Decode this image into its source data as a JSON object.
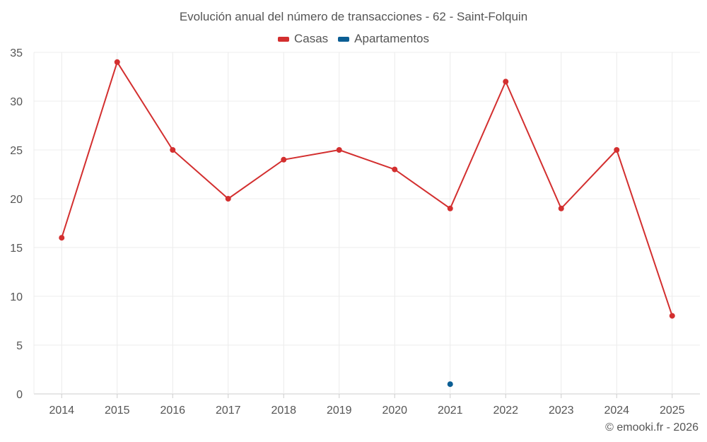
{
  "chart_data": {
    "type": "line",
    "title": "Evolución anual del número de transacciones - 62 - Saint-Folquin",
    "categories": [
      "2014",
      "2015",
      "2016",
      "2017",
      "2018",
      "2019",
      "2020",
      "2021",
      "2022",
      "2023",
      "2024",
      "2025"
    ],
    "series": [
      {
        "name": "Casas",
        "color": "#d32f2f",
        "values": [
          16,
          34,
          25,
          20,
          24,
          25,
          23,
          19,
          32,
          19,
          25,
          8
        ]
      },
      {
        "name": "Apartamentos",
        "color": "#0b5e94",
        "values": [
          null,
          null,
          null,
          null,
          null,
          null,
          null,
          1,
          null,
          null,
          null,
          null
        ]
      }
    ],
    "ylim": [
      0,
      35
    ],
    "yticks": [
      0,
      5,
      10,
      15,
      20,
      25,
      30,
      35
    ],
    "grid": true,
    "legend": "top-center"
  },
  "credit": "© emooki.fr - 2026"
}
